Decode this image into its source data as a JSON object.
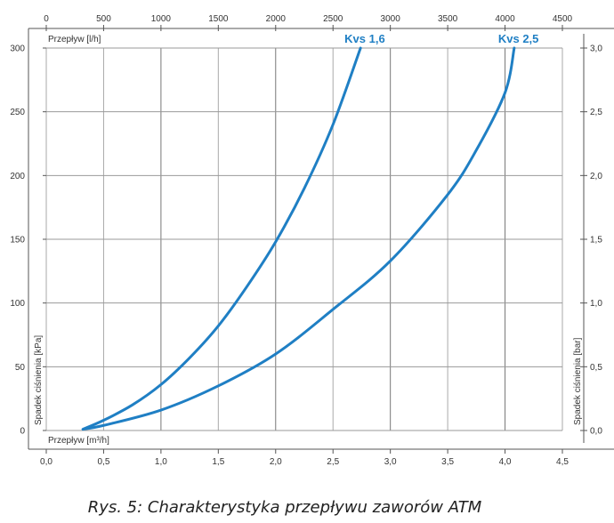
{
  "chart_data": {
    "type": "line",
    "caption": "Rys. 5: Charakterystyka przepływu zaworów ATM",
    "x_bottom": {
      "label": "Przepływ [m³/h]",
      "range": [
        0,
        4.5
      ],
      "ticks": [
        "0,0",
        "0,5",
        "1,0",
        "1,5",
        "2,0",
        "2,5",
        "3,0",
        "3,5",
        "4,0",
        "4,5"
      ]
    },
    "x_top": {
      "label": "Przepływ [l/h]",
      "range": [
        0,
        4500
      ],
      "ticks": [
        "0",
        "500",
        "1000",
        "1500",
        "2000",
        "2500",
        "3000",
        "3500",
        "4000",
        "4500"
      ]
    },
    "y_left": {
      "label": "Spadek ciśnienia [kPa]",
      "range": [
        0,
        300
      ],
      "ticks": [
        "0",
        "50",
        "100",
        "150",
        "200",
        "250",
        "300"
      ]
    },
    "y_right": {
      "label": "Spadek ciśnienia [bar]",
      "range": [
        0,
        3.0
      ],
      "ticks": [
        "0,0",
        "0,5",
        "1,0",
        "1,5",
        "2,0",
        "2,5",
        "3,0"
      ]
    },
    "grid": true,
    "series_color": "#1f7fc4",
    "series": [
      {
        "name": "Kvs 1,6",
        "x": [
          0.32,
          0.5,
          0.75,
          1.0,
          1.25,
          1.5,
          1.75,
          2.0,
          2.25,
          2.5,
          2.74
        ],
        "y": [
          1,
          8,
          20,
          36,
          57,
          82,
          113,
          148,
          190,
          240,
          300
        ]
      },
      {
        "name": "Kvs 2,5",
        "x": [
          0.32,
          0.5,
          1.0,
          1.5,
          2.0,
          2.5,
          3.0,
          3.5,
          3.75,
          4.0,
          4.08
        ],
        "y": [
          1,
          4,
          16,
          35,
          60,
          95,
          133,
          185,
          220,
          265,
          300
        ]
      }
    ]
  }
}
